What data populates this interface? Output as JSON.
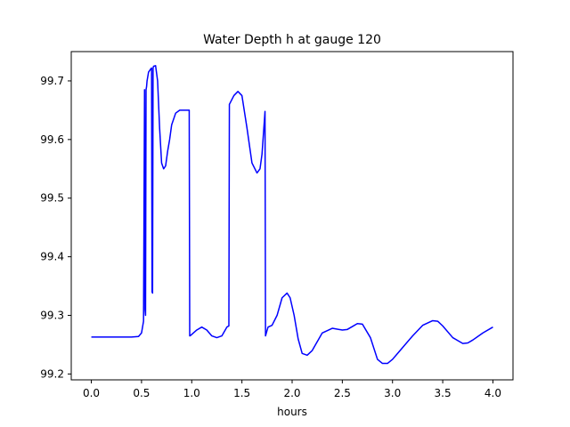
{
  "chart_data": {
    "type": "line",
    "title": "Water Depth h at gauge 120",
    "xlabel": "hours",
    "ylabel": "",
    "xlim": [
      -0.2,
      4.2
    ],
    "ylim": [
      99.19,
      99.75
    ],
    "xticks": [
      0.0,
      0.5,
      1.0,
      1.5,
      2.0,
      2.5,
      3.0,
      3.5,
      4.0
    ],
    "xtick_labels": [
      "0.0",
      "0.5",
      "1.0",
      "1.5",
      "2.0",
      "2.5",
      "3.0",
      "3.5",
      "4.0"
    ],
    "yticks": [
      99.2,
      99.3,
      99.4,
      99.5,
      99.6,
      99.7
    ],
    "ytick_labels": [
      "99.2",
      "99.3",
      "99.4",
      "99.5",
      "99.6",
      "99.7"
    ],
    "grid": false,
    "series": [
      {
        "color": "#0000ff",
        "x": [
          0.0,
          0.2,
          0.4,
          0.47,
          0.5,
          0.52,
          0.53,
          0.535,
          0.54,
          0.545,
          0.55,
          0.555,
          0.57,
          0.59,
          0.6,
          0.605,
          0.61,
          0.615,
          0.62,
          0.64,
          0.66,
          0.68,
          0.7,
          0.72,
          0.74,
          0.76,
          0.78,
          0.8,
          0.84,
          0.88,
          0.92,
          0.95,
          0.975,
          0.98,
          0.99,
          1.05,
          1.1,
          1.15,
          1.2,
          1.25,
          1.3,
          1.35,
          1.37,
          1.375,
          1.42,
          1.46,
          1.5,
          1.55,
          1.6,
          1.65,
          1.68,
          1.7,
          1.73,
          1.735,
          1.74,
          1.76,
          1.8,
          1.85,
          1.9,
          1.95,
          1.98,
          2.02,
          2.06,
          2.1,
          2.15,
          2.2,
          2.25,
          2.3,
          2.4,
          2.5,
          2.55,
          2.6,
          2.65,
          2.7,
          2.78,
          2.85,
          2.9,
          2.95,
          3.0,
          3.05,
          3.1,
          3.2,
          3.3,
          3.4,
          3.45,
          3.5,
          3.6,
          3.7,
          3.75,
          3.8,
          3.9,
          4.0
        ],
        "y": [
          99.263,
          99.263,
          99.263,
          99.264,
          99.27,
          99.29,
          99.685,
          99.31,
          99.3,
          99.685,
          99.69,
          99.7,
          99.715,
          99.72,
          99.722,
          99.34,
          99.338,
          99.722,
          99.725,
          99.726,
          99.7,
          99.62,
          99.56,
          99.55,
          99.555,
          99.58,
          99.6,
          99.625,
          99.645,
          99.65,
          99.65,
          99.65,
          99.65,
          99.265,
          99.266,
          99.275,
          99.28,
          99.275,
          99.265,
          99.262,
          99.265,
          99.28,
          99.282,
          99.66,
          99.675,
          99.682,
          99.675,
          99.62,
          99.56,
          99.543,
          99.55,
          99.575,
          99.648,
          99.265,
          99.268,
          99.28,
          99.283,
          99.3,
          99.33,
          99.338,
          99.33,
          99.3,
          99.26,
          99.235,
          99.232,
          99.24,
          99.255,
          99.27,
          99.278,
          99.275,
          99.276,
          99.281,
          99.286,
          99.285,
          99.262,
          99.225,
          99.218,
          99.218,
          99.225,
          99.235,
          99.245,
          99.265,
          99.283,
          99.291,
          99.29,
          99.282,
          99.262,
          99.252,
          99.253,
          99.258,
          99.27,
          99.28
        ]
      }
    ]
  }
}
